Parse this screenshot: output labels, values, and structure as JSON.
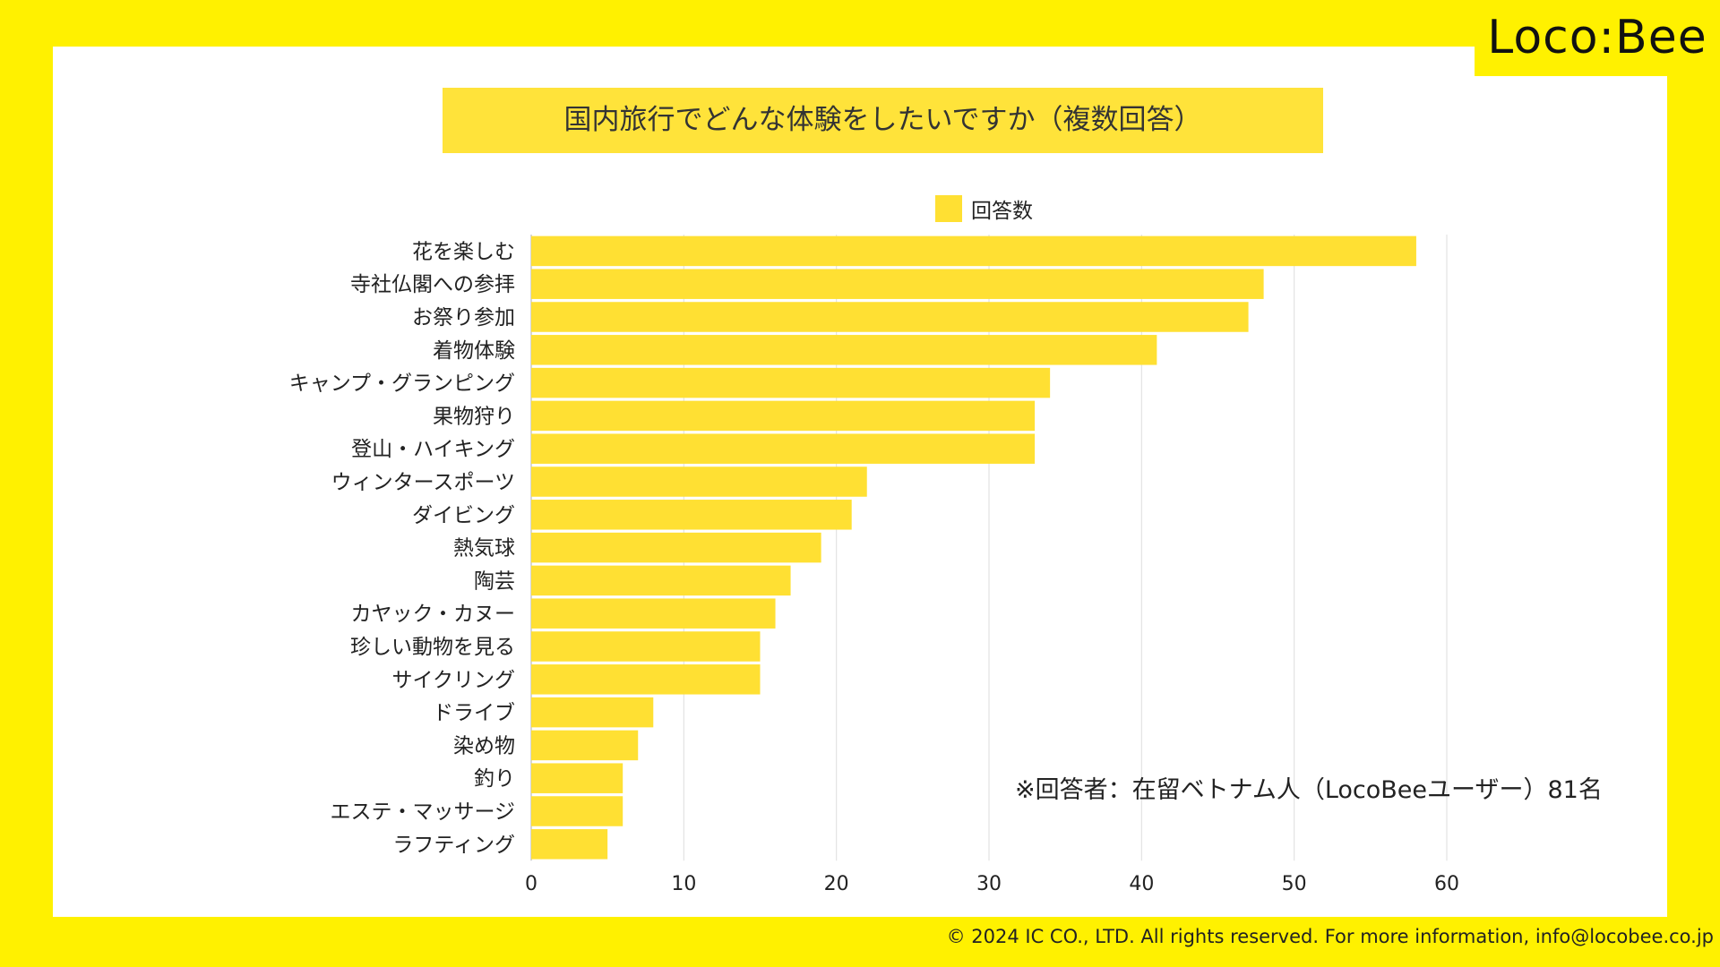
{
  "brand": {
    "logo_text": "Loco:Bee"
  },
  "chart_data": {
    "type": "bar",
    "orientation": "horizontal",
    "title": "国内旅行でどんな体験をしたいですか（複数回答）",
    "legend": [
      "回答数"
    ],
    "legend_position": "top-center",
    "categories": [
      "花を楽しむ",
      "寺社仏閣への参拝",
      "お祭り参加",
      "着物体験",
      "キャンプ・グランピング",
      "果物狩り",
      "登山・ハイキング",
      "ウィンタースポーツ",
      "ダイビング",
      "熱気球",
      "陶芸",
      "カヤック・カヌー",
      "珍しい動物を見る",
      "サイクリング",
      "ドライブ",
      "染め物",
      "釣り",
      "エステ・マッサージ",
      "ラフティング"
    ],
    "series": [
      {
        "name": "回答数",
        "values": [
          58,
          48,
          47,
          41,
          34,
          33,
          33,
          22,
          21,
          19,
          17,
          16,
          15,
          15,
          8,
          7,
          6,
          6,
          5
        ]
      }
    ],
    "xlim": [
      0,
      60
    ],
    "xticks": [
      0,
      10,
      20,
      30,
      40,
      50,
      60
    ],
    "grid": true,
    "bar_color": "#FFE033",
    "annotation": "※回答者：在留ベトナム人（LocoBeeユーザー）81名"
  },
  "footer": {
    "copyright": "© 2024 IC CO., LTD. All rights reserved. For more information, info@locobee.co.jp"
  },
  "colors": {
    "background": "#FFF100",
    "panel": "#FFFFFF",
    "bar": "#FFE033",
    "title_box": "#FFE33A"
  }
}
